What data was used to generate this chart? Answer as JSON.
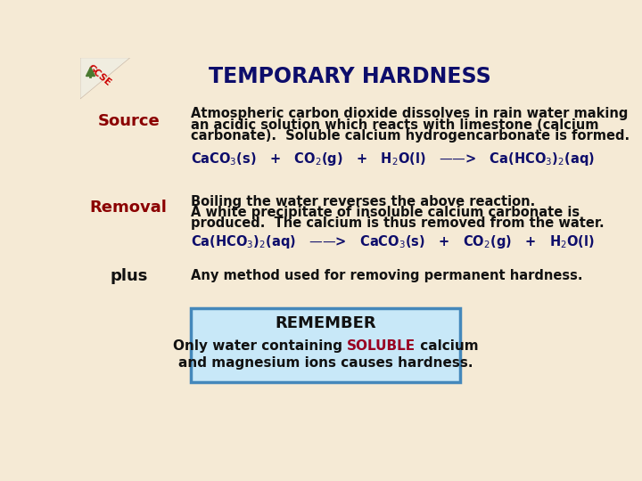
{
  "title": "TEMPORARY HARDNESS",
  "title_color": "#0d0d6b",
  "background_color": "#f5ead5",
  "source_label": "Source",
  "removal_label": "Removal",
  "plus_label": "plus",
  "label_color": "#8b0000",
  "text_color": "#0d0d6b",
  "body_text_color": "#111111",
  "source_text_line1": "Atmospheric carbon dioxide dissolves in rain water making",
  "source_text_line2": "an acidic solution which reacts with limestone (calcium",
  "source_text_line3": "carbonate).  Soluble calcium hydrogencarbonate is formed.",
  "reaction1": "CaCO$_3$(s)   +   CO$_2$(g)   +   H$_2$O(l)   ——>   Ca(HCO$_3$)$_2$(aq)",
  "removal_text_line1": "Boiling the water reverses the above reaction.",
  "removal_text_line2": "A white precipitate of insoluble calcium carbonate is",
  "removal_text_line3": "produced.  The calcium is thus removed from the water.",
  "reaction2": "Ca(HCO$_3$)$_2$(aq)   ——>   CaCO$_3$(s)   +   CO$_2$(g)   +   H$_2$O(l)",
  "plus_text": "Any method used for removing permanent hardness.",
  "remember_title": "REMEMBER",
  "remember_line2_before": "Only water containing ",
  "remember_soluble": "SOLUBLE",
  "remember_line2_after": " calcium",
  "remember_line3": "and magnesium ions causes hardness.",
  "remember_color": "#990022",
  "remember_box_bg": "#c8e8f8",
  "remember_box_border": "#4488bb",
  "gcse_color": "#cc0000",
  "title_fontsize": 17,
  "label_fontsize": 13,
  "body_fontsize": 10.5,
  "reaction_fontsize": 10.5,
  "remember_title_fontsize": 13,
  "remember_body_fontsize": 11
}
